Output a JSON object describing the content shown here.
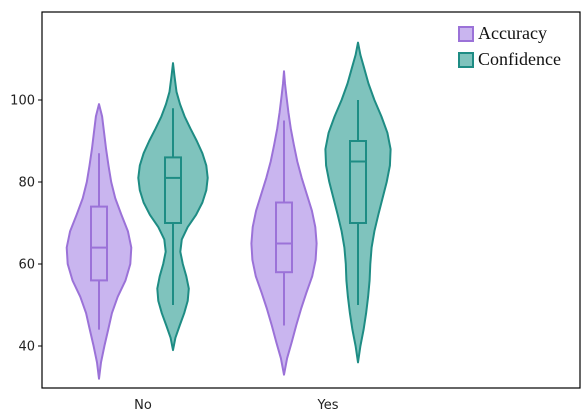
{
  "chart_data": {
    "type": "violin",
    "categories": [
      "No",
      "Yes"
    ],
    "ylim": [
      30,
      118
    ],
    "yticks": [
      40,
      60,
      80,
      100
    ],
    "legend_position": "top-right",
    "grid": false,
    "series": [
      {
        "name": "Accuracy",
        "color": "#9b72d8",
        "fill": "#c9b5ef",
        "groups": [
          {
            "category": "No",
            "min": 32,
            "max": 99,
            "whisker_low": 44,
            "q1": 56,
            "median": 64,
            "q3": 74,
            "whisker_high": 87,
            "density": [
              [
                32,
                0.0
              ],
              [
                36,
                0.06
              ],
              [
                40,
                0.16
              ],
              [
                44,
                0.27
              ],
              [
                48,
                0.38
              ],
              [
                52,
                0.55
              ],
              [
                56,
                0.78
              ],
              [
                60,
                0.92
              ],
              [
                64,
                0.95
              ],
              [
                68,
                0.85
              ],
              [
                72,
                0.66
              ],
              [
                76,
                0.48
              ],
              [
                80,
                0.36
              ],
              [
                84,
                0.28
              ],
              [
                88,
                0.21
              ],
              [
                92,
                0.15
              ],
              [
                96,
                0.09
              ],
              [
                99,
                0.0
              ]
            ]
          },
          {
            "category": "Yes",
            "min": 33,
            "max": 107,
            "whisker_low": 45,
            "q1": 58,
            "median": 65,
            "q3": 75,
            "whisker_high": 95,
            "density": [
              [
                33,
                0.0
              ],
              [
                37,
                0.09
              ],
              [
                41,
                0.23
              ],
              [
                45,
                0.36
              ],
              [
                49,
                0.5
              ],
              [
                53,
                0.66
              ],
              [
                57,
                0.83
              ],
              [
                61,
                0.93
              ],
              [
                65,
                0.96
              ],
              [
                69,
                0.92
              ],
              [
                73,
                0.82
              ],
              [
                77,
                0.67
              ],
              [
                81,
                0.52
              ],
              [
                85,
                0.39
              ],
              [
                89,
                0.29
              ],
              [
                93,
                0.2
              ],
              [
                97,
                0.13
              ],
              [
                101,
                0.07
              ],
              [
                104,
                0.03
              ],
              [
                107,
                0.0
              ]
            ]
          }
        ]
      },
      {
        "name": "Confidence",
        "color": "#1e8c84",
        "fill": "#7fc3bd",
        "groups": [
          {
            "category": "No",
            "min": 39,
            "max": 109,
            "whisker_low": 50,
            "q1": 70,
            "median": 81,
            "q3": 86,
            "whisker_high": 98,
            "density": [
              [
                39,
                0.0
              ],
              [
                42,
                0.07
              ],
              [
                45,
                0.19
              ],
              [
                48,
                0.32
              ],
              [
                51,
                0.42
              ],
              [
                54,
                0.45
              ],
              [
                57,
                0.38
              ],
              [
                60,
                0.28
              ],
              [
                63,
                0.21
              ],
              [
                66,
                0.25
              ],
              [
                69,
                0.42
              ],
              [
                72,
                0.66
              ],
              [
                75,
                0.84
              ],
              [
                78,
                0.95
              ],
              [
                81,
                0.99
              ],
              [
                84,
                0.95
              ],
              [
                87,
                0.84
              ],
              [
                90,
                0.68
              ],
              [
                93,
                0.5
              ],
              [
                96,
                0.33
              ],
              [
                99,
                0.2
              ],
              [
                102,
                0.1
              ],
              [
                106,
                0.04
              ],
              [
                109,
                0.0
              ]
            ]
          },
          {
            "category": "Yes",
            "min": 36,
            "max": 114,
            "whisker_low": 50,
            "q1": 70,
            "median": 85,
            "q3": 90,
            "whisker_high": 100,
            "density": [
              [
                36,
                0.0
              ],
              [
                40,
                0.07
              ],
              [
                44,
                0.16
              ],
              [
                48,
                0.23
              ],
              [
                52,
                0.29
              ],
              [
                56,
                0.33
              ],
              [
                60,
                0.35
              ],
              [
                64,
                0.39
              ],
              [
                68,
                0.47
              ],
              [
                72,
                0.58
              ],
              [
                76,
                0.7
              ],
              [
                80,
                0.82
              ],
              [
                84,
                0.91
              ],
              [
                88,
                0.93
              ],
              [
                92,
                0.84
              ],
              [
                96,
                0.67
              ],
              [
                100,
                0.47
              ],
              [
                104,
                0.3
              ],
              [
                108,
                0.17
              ],
              [
                111,
                0.07
              ],
              [
                114,
                0.0
              ]
            ]
          }
        ]
      }
    ]
  }
}
